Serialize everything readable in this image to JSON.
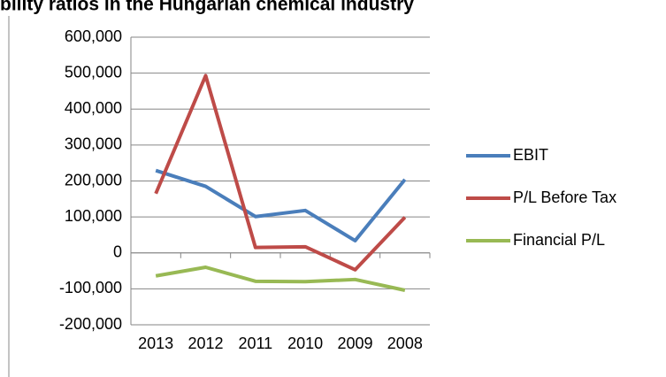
{
  "chart_data": {
    "type": "line",
    "title": "bility ratios in the Hungarian chemical industry",
    "categories": [
      "2013",
      "2012",
      "2011",
      "2010",
      "2009",
      "2008"
    ],
    "series": [
      {
        "name": "EBIT",
        "color": "#4a7ebb",
        "values": [
          229000,
          185000,
          101000,
          118000,
          34000,
          204000
        ]
      },
      {
        "name": "P/L Before Tax",
        "color": "#be4b48",
        "values": [
          165000,
          493000,
          15000,
          17000,
          -47000,
          99000
        ]
      },
      {
        "name": "Financial P/L",
        "color": "#98b954",
        "values": [
          -64000,
          -40000,
          -79000,
          -80000,
          -74000,
          -104000
        ]
      }
    ],
    "ylim": [
      -200000,
      600000
    ],
    "yticks": [
      {
        "value": -200000,
        "label": "-200,000"
      },
      {
        "value": -100000,
        "label": "-100,000"
      },
      0,
      {
        "value": 100000,
        "label": "100,000"
      },
      {
        "value": 200000,
        "label": "200,000"
      },
      {
        "value": 300000,
        "label": "300,000"
      },
      {
        "value": 400000,
        "label": "400,000"
      },
      {
        "value": 500000,
        "label": "500,000"
      },
      {
        "value": 600000,
        "label": "600,000"
      }
    ],
    "grid": true,
    "legend": "right"
  }
}
